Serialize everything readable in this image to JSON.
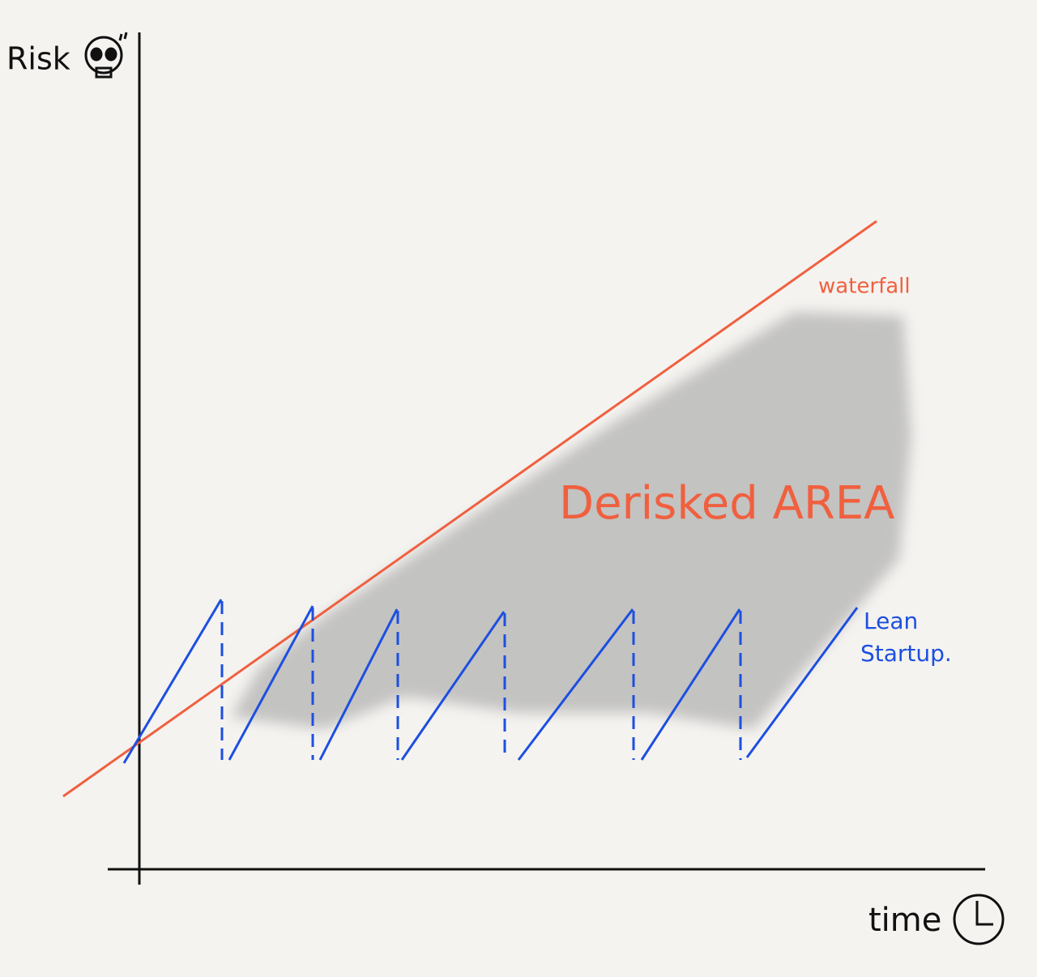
{
  "axes": {
    "y_label": "Risk",
    "x_label": "time"
  },
  "lines": {
    "waterfall": "waterfall",
    "lean_startup": [
      "Lean",
      "Startup."
    ]
  },
  "area_label": "Derisked AREA"
}
